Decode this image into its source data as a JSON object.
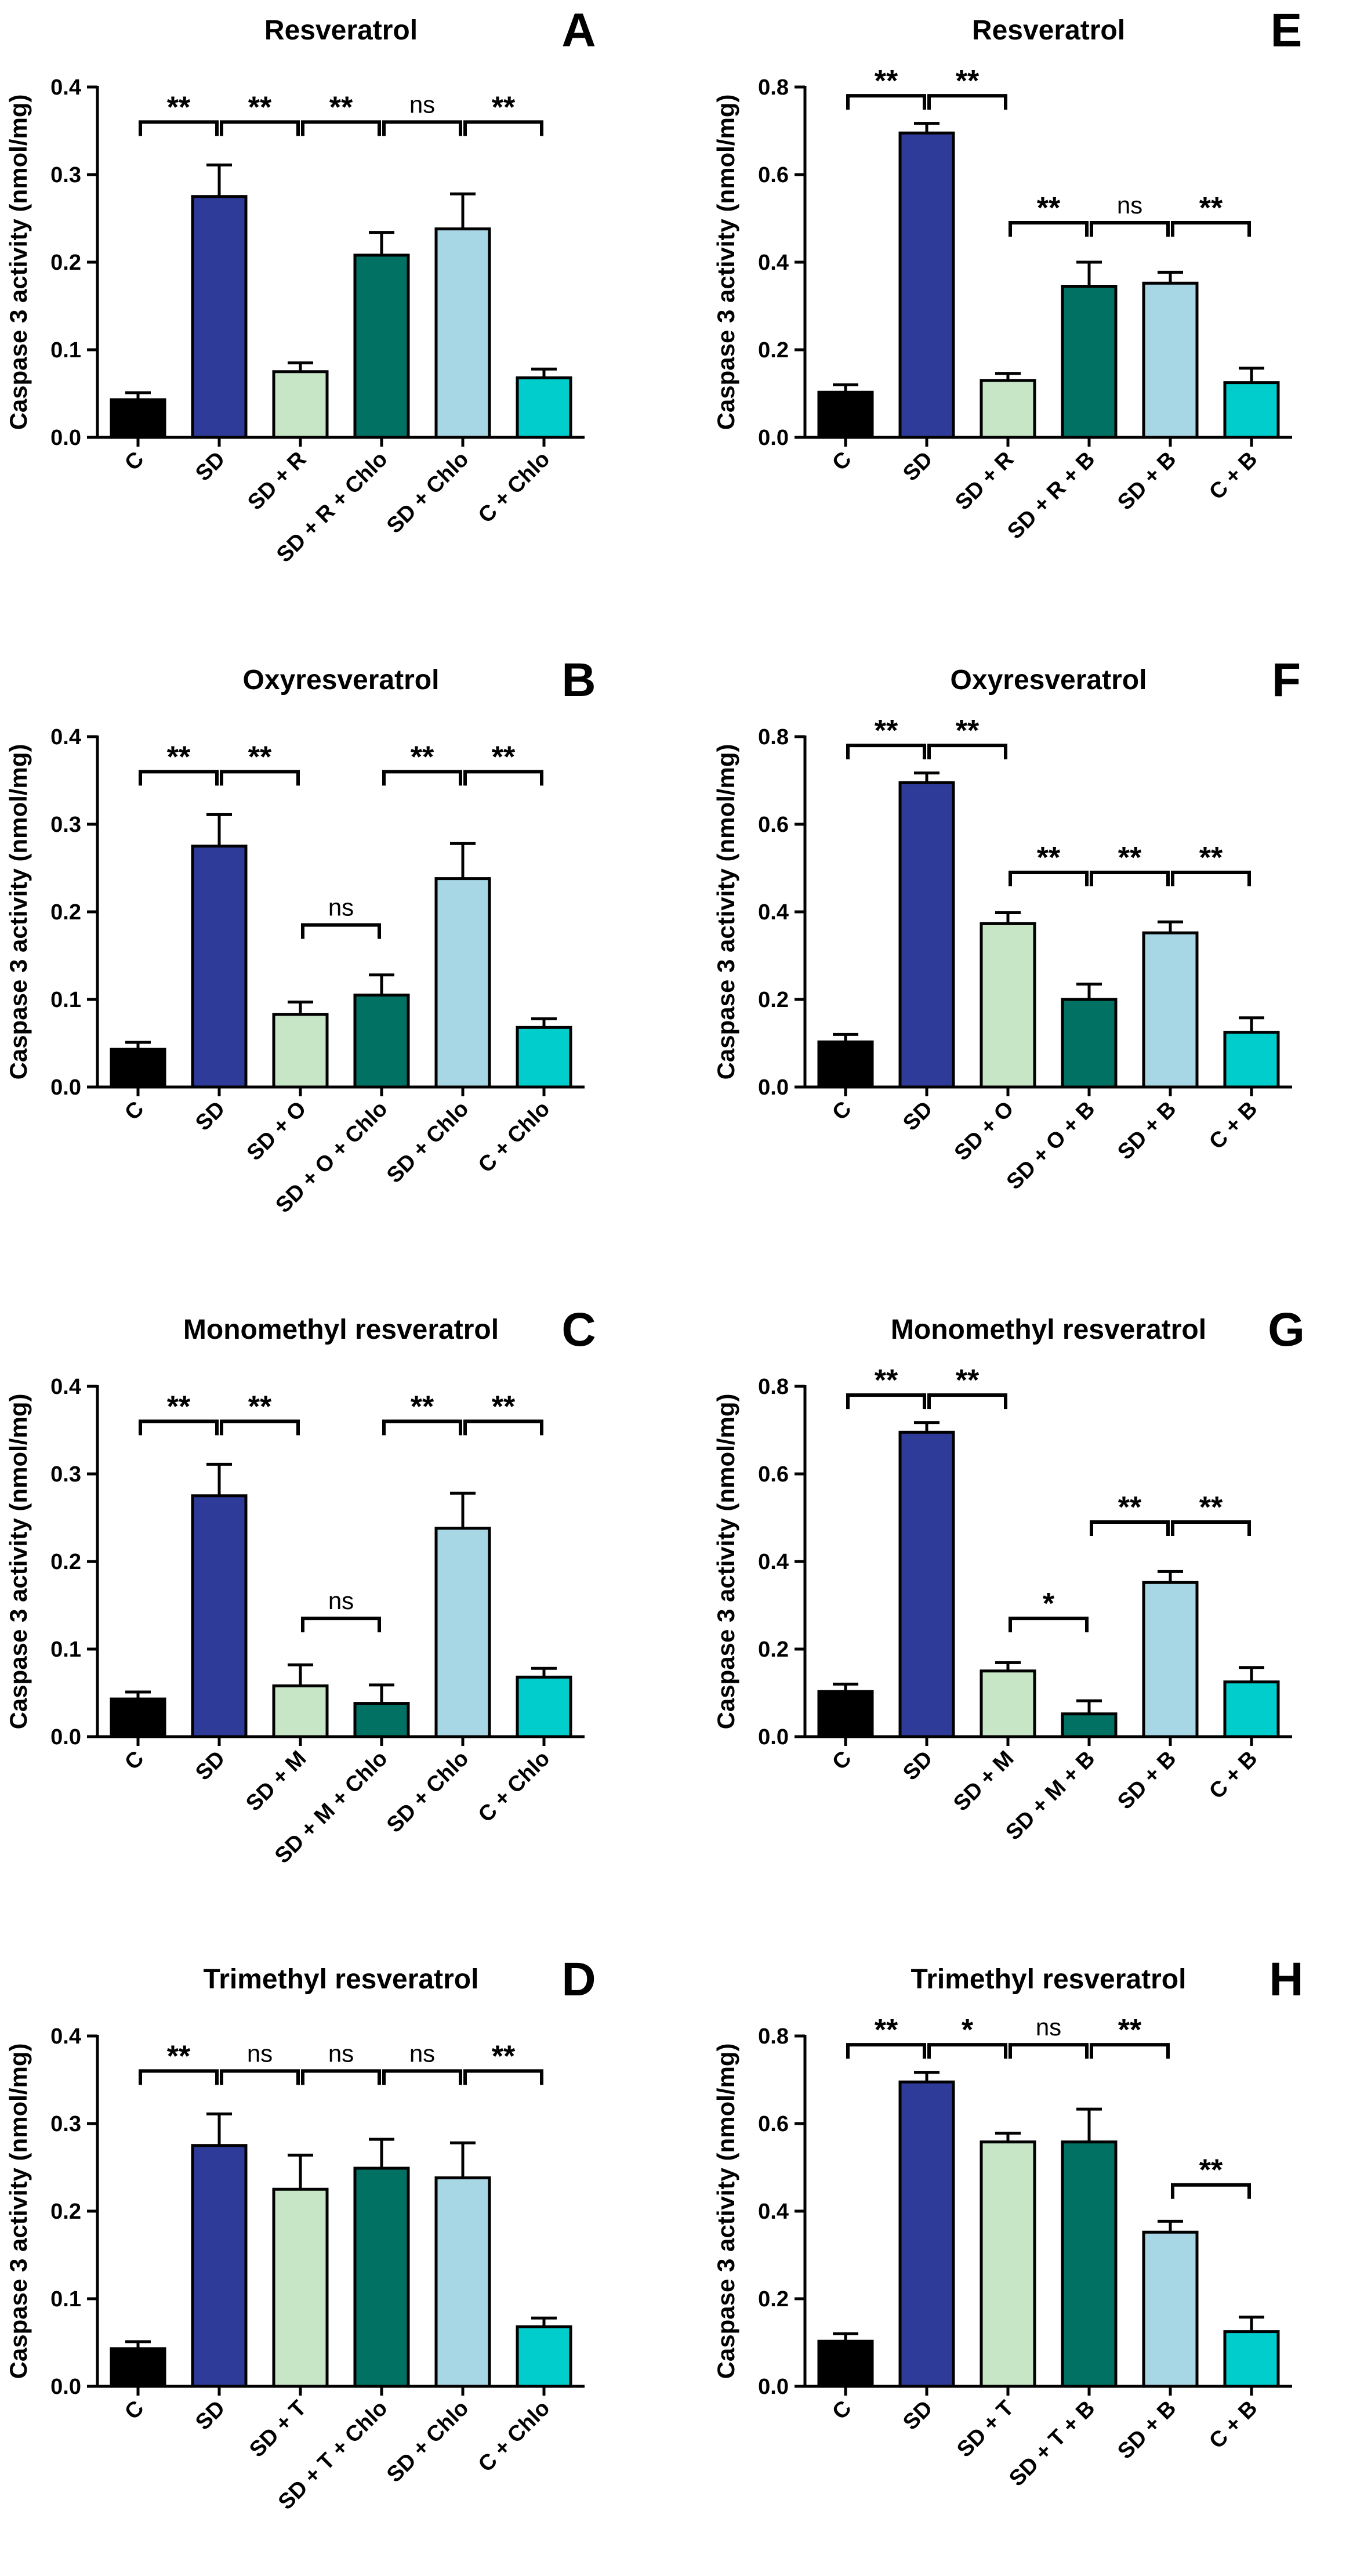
{
  "figure": {
    "ylabel": "Caspase 3 activity (nmol/mg)",
    "colors": {
      "C": "#000000",
      "SD": "#2e3b98",
      "treat": "#c6e6c6",
      "treatInh": "#007163",
      "inh": "#a7d6e4",
      "ctrlInh": "#00cdcc"
    }
  },
  "chart_data": [
    {
      "type": "bar",
      "letter": "A",
      "title": "Resveratrol",
      "ylim": [
        0,
        0.4
      ],
      "yticks": [
        "0.0",
        "0.1",
        "0.2",
        "0.3",
        "0.4"
      ],
      "tickvals": [
        0,
        0.1,
        0.2,
        0.3,
        0.4
      ],
      "categories": [
        "C",
        "SD",
        "SD + R",
        "SD + R + Chlo",
        "SD + Chlo",
        "C + Chlo"
      ],
      "values": [
        0.043,
        0.275,
        0.075,
        0.208,
        0.238,
        0.068
      ],
      "errors": [
        0.008,
        0.036,
        0.01,
        0.026,
        0.04,
        0.01
      ],
      "brackets": [
        {
          "from": 0,
          "to": 1,
          "label": "**",
          "y": 0.36
        },
        {
          "from": 1,
          "to": 2,
          "label": "**",
          "y": 0.36
        },
        {
          "from": 2,
          "to": 3,
          "label": "**",
          "y": 0.36
        },
        {
          "from": 3,
          "to": 4,
          "label": "ns",
          "y": 0.36
        },
        {
          "from": 4,
          "to": 5,
          "label": "**",
          "y": 0.36
        }
      ]
    },
    {
      "type": "bar",
      "letter": "B",
      "title": "Oxyresveratrol",
      "ylim": [
        0,
        0.4
      ],
      "yticks": [
        "0.0",
        "0.1",
        "0.2",
        "0.3",
        "0.4"
      ],
      "tickvals": [
        0,
        0.1,
        0.2,
        0.3,
        0.4
      ],
      "categories": [
        "C",
        "SD",
        "SD + O",
        "SD + O + Chlo",
        "SD + Chlo",
        "C + Chlo"
      ],
      "values": [
        0.043,
        0.275,
        0.083,
        0.105,
        0.238,
        0.068
      ],
      "errors": [
        0.008,
        0.036,
        0.014,
        0.023,
        0.04,
        0.01
      ],
      "brackets": [
        {
          "from": 0,
          "to": 1,
          "label": "**",
          "y": 0.36
        },
        {
          "from": 1,
          "to": 2,
          "label": "**",
          "y": 0.36
        },
        {
          "from": 2,
          "to": 3,
          "label": "ns",
          "y": 0.185
        },
        {
          "from": 4,
          "to": 5,
          "label": "**",
          "y": 0.36
        },
        {
          "from": 3,
          "to": 4,
          "label": "**",
          "y": 0.36
        }
      ]
    },
    {
      "type": "bar",
      "letter": "C",
      "title": "Monomethyl resveratrol",
      "ylim": [
        0,
        0.4
      ],
      "yticks": [
        "0.0",
        "0.1",
        "0.2",
        "0.3",
        "0.4"
      ],
      "tickvals": [
        0,
        0.1,
        0.2,
        0.3,
        0.4
      ],
      "categories": [
        "C",
        "SD",
        "SD + M",
        "SD + M + Chlo",
        "SD + Chlo",
        "C + Chlo"
      ],
      "values": [
        0.043,
        0.275,
        0.058,
        0.038,
        0.238,
        0.068
      ],
      "errors": [
        0.008,
        0.036,
        0.024,
        0.021,
        0.04,
        0.01
      ],
      "brackets": [
        {
          "from": 0,
          "to": 1,
          "label": "**",
          "y": 0.36
        },
        {
          "from": 1,
          "to": 2,
          "label": "**",
          "y": 0.36
        },
        {
          "from": 2,
          "to": 3,
          "label": "ns",
          "y": 0.135
        },
        {
          "from": 3,
          "to": 4,
          "label": "**",
          "y": 0.36
        },
        {
          "from": 4,
          "to": 5,
          "label": "**",
          "y": 0.36
        }
      ]
    },
    {
      "type": "bar",
      "letter": "D",
      "title": "Trimethyl resveratrol",
      "ylim": [
        0,
        0.4
      ],
      "yticks": [
        "0.0",
        "0.1",
        "0.2",
        "0.3",
        "0.4"
      ],
      "tickvals": [
        0,
        0.1,
        0.2,
        0.3,
        0.4
      ],
      "categories": [
        "C",
        "SD",
        "SD + T",
        "SD + T + Chlo",
        "SD + Chlo",
        "C + Chlo"
      ],
      "values": [
        0.043,
        0.275,
        0.225,
        0.249,
        0.238,
        0.068
      ],
      "errors": [
        0.008,
        0.036,
        0.039,
        0.033,
        0.04,
        0.01
      ],
      "brackets": [
        {
          "from": 0,
          "to": 1,
          "label": "**",
          "y": 0.36
        },
        {
          "from": 1,
          "to": 2,
          "label": "ns",
          "y": 0.36
        },
        {
          "from": 2,
          "to": 3,
          "label": "ns",
          "y": 0.36
        },
        {
          "from": 3,
          "to": 4,
          "label": "ns",
          "y": 0.36
        },
        {
          "from": 4,
          "to": 5,
          "label": "**",
          "y": 0.36
        }
      ]
    },
    {
      "type": "bar",
      "letter": "E",
      "title": "Resveratrol",
      "ylim": [
        0,
        0.8
      ],
      "yticks": [
        "0.0",
        "0.2",
        "0.4",
        "0.6",
        "0.8"
      ],
      "tickvals": [
        0,
        0.2,
        0.4,
        0.6,
        0.8
      ],
      "categories": [
        "C",
        "SD",
        "SD + R",
        "SD + R + B",
        "SD + B",
        "C + B"
      ],
      "values": [
        0.103,
        0.695,
        0.13,
        0.345,
        0.352,
        0.125
      ],
      "errors": [
        0.017,
        0.022,
        0.016,
        0.055,
        0.025,
        0.033
      ],
      "brackets": [
        {
          "from": 0,
          "to": 1,
          "label": "**",
          "y": 0.78
        },
        {
          "from": 1,
          "to": 2,
          "label": "**",
          "y": 0.78
        },
        {
          "from": 2,
          "to": 3,
          "label": "**",
          "y": 0.49
        },
        {
          "from": 3,
          "to": 4,
          "label": "ns",
          "y": 0.49
        },
        {
          "from": 4,
          "to": 5,
          "label": "**",
          "y": 0.49
        }
      ]
    },
    {
      "type": "bar",
      "letter": "F",
      "title": "Oxyresveratrol",
      "ylim": [
        0,
        0.8
      ],
      "yticks": [
        "0.0",
        "0.2",
        "0.4",
        "0.6",
        "0.8"
      ],
      "tickvals": [
        0,
        0.2,
        0.4,
        0.6,
        0.8
      ],
      "categories": [
        "C",
        "SD",
        "SD + O",
        "SD + O + B",
        "SD + B",
        "C + B"
      ],
      "values": [
        0.103,
        0.695,
        0.373,
        0.2,
        0.352,
        0.125
      ],
      "errors": [
        0.017,
        0.022,
        0.025,
        0.035,
        0.025,
        0.033
      ],
      "brackets": [
        {
          "from": 0,
          "to": 1,
          "label": "**",
          "y": 0.78
        },
        {
          "from": 1,
          "to": 2,
          "label": "**",
          "y": 0.78
        },
        {
          "from": 2,
          "to": 3,
          "label": "**",
          "y": 0.49
        },
        {
          "from": 3,
          "to": 4,
          "label": "**",
          "y": 0.49
        },
        {
          "from": 4,
          "to": 5,
          "label": "**",
          "y": 0.49
        }
      ]
    },
    {
      "type": "bar",
      "letter": "G",
      "title": "Monomethyl resveratrol",
      "ylim": [
        0,
        0.8
      ],
      "yticks": [
        "0.0",
        "0.2",
        "0.4",
        "0.6",
        "0.8"
      ],
      "tickvals": [
        0,
        0.2,
        0.4,
        0.6,
        0.8
      ],
      "categories": [
        "C",
        "SD",
        "SD + M",
        "SD + M + B",
        "SD + B",
        "C + B"
      ],
      "values": [
        0.103,
        0.695,
        0.15,
        0.052,
        0.352,
        0.125
      ],
      "errors": [
        0.017,
        0.022,
        0.019,
        0.03,
        0.025,
        0.033
      ],
      "brackets": [
        {
          "from": 0,
          "to": 1,
          "label": "**",
          "y": 0.78
        },
        {
          "from": 1,
          "to": 2,
          "label": "**",
          "y": 0.78
        },
        {
          "from": 2,
          "to": 3,
          "label": "*",
          "y": 0.27
        },
        {
          "from": 3,
          "to": 4,
          "label": "**",
          "y": 0.49
        },
        {
          "from": 4,
          "to": 5,
          "label": "**",
          "y": 0.49
        }
      ]
    },
    {
      "type": "bar",
      "letter": "H",
      "title": "Trimethyl resveratrol",
      "ylim": [
        0,
        0.8
      ],
      "yticks": [
        "0.0",
        "0.2",
        "0.4",
        "0.6",
        "0.8"
      ],
      "tickvals": [
        0,
        0.2,
        0.4,
        0.6,
        0.8
      ],
      "categories": [
        "C",
        "SD",
        "SD + T",
        "SD + T + B",
        "SD + B",
        "C + B"
      ],
      "values": [
        0.103,
        0.695,
        0.558,
        0.558,
        0.352,
        0.125
      ],
      "errors": [
        0.017,
        0.022,
        0.02,
        0.075,
        0.025,
        0.033
      ],
      "brackets": [
        {
          "from": 0,
          "to": 1,
          "label": "**",
          "y": 0.78
        },
        {
          "from": 1,
          "to": 2,
          "label": "*",
          "y": 0.78
        },
        {
          "from": 2,
          "to": 3,
          "label": "ns",
          "y": 0.78
        },
        {
          "from": 3,
          "to": 4,
          "label": "**",
          "y": 0.78
        },
        {
          "from": 4,
          "to": 5,
          "label": "**",
          "y": 0.46
        }
      ]
    }
  ]
}
